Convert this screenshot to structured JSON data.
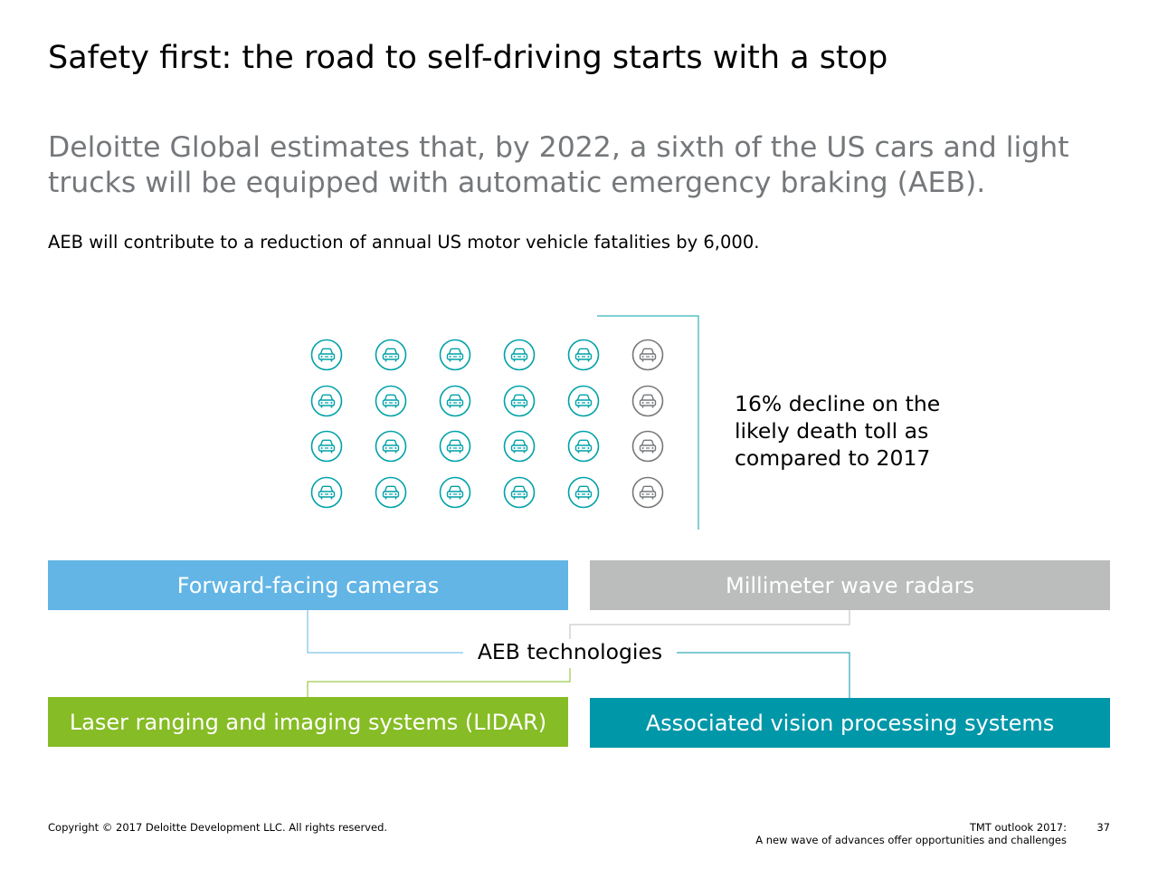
{
  "slide": {
    "title": "Safety first: the road to self-driving starts with a stop",
    "subtitle": "Deloitte Global estimates that, by 2022, a sixth of the US cars and light trucks will be equipped with automatic emergency braking (AEB).",
    "body": "AEB will contribute to a reduction of annual US motor vehicle fatalities by 6,000."
  },
  "infographic": {
    "rows": 4,
    "cols": 6,
    "highlighted_cols": 5,
    "icon": "car-icon",
    "colors": {
      "highlighted": "#00a1a8",
      "muted": "#75787b",
      "bracket": "#00a1a8"
    },
    "stat_text": "16% decline on the likely death toll as compared to 2017"
  },
  "technologies": {
    "center_label": "AEB technologies",
    "boxes": [
      {
        "id": "cameras",
        "label": "Forward-facing cameras",
        "color": "#62b5e5"
      },
      {
        "id": "radars",
        "label": "Millimeter wave radars",
        "color": "#bbbcbc"
      },
      {
        "id": "lidar",
        "label": "Laser ranging and imaging systems (LIDAR)",
        "color": "#86bc25"
      },
      {
        "id": "vision",
        "label": "Associated vision processing systems",
        "color": "#0097a9"
      }
    ]
  },
  "footer": {
    "copyright": "Copyright © 2017 Deloitte Development LLC. All rights reserved.",
    "report_title": "TMT outlook 2017:",
    "report_subtitle": "A new wave of advances offer opportunities and challenges",
    "page_number": "37"
  }
}
